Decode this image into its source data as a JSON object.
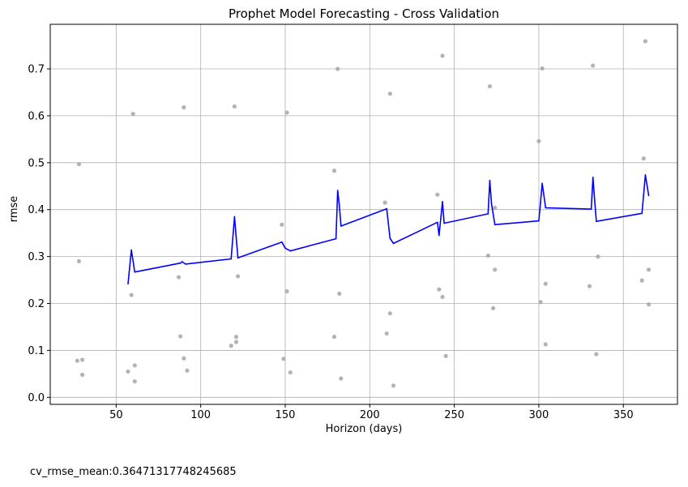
{
  "chart_data": {
    "type": "line",
    "title": "Prophet Model Forecasting - Cross Validation",
    "xlabel": "Horizon (days)",
    "ylabel": "rmse",
    "xlim": [
      11,
      382
    ],
    "ylim": [
      -0.015,
      0.795
    ],
    "x_ticks": [
      50,
      100,
      150,
      200,
      250,
      300,
      350
    ],
    "y_ticks": [
      0.0,
      0.1,
      0.2,
      0.3,
      0.4,
      0.5,
      0.6,
      0.7
    ],
    "grid": true,
    "series": [
      {
        "style": "scatter",
        "color": "#a6a6a6",
        "x": [
          27,
          28,
          28,
          30,
          30,
          57,
          59,
          60,
          61,
          61,
          87,
          88,
          90,
          90,
          92,
          118,
          120,
          121,
          121,
          122,
          148,
          149,
          151,
          151,
          153,
          179,
          179,
          181,
          182,
          183,
          209,
          210,
          212,
          212,
          214,
          240,
          241,
          243,
          243,
          245,
          270,
          271,
          273,
          274,
          274,
          300,
          301,
          302,
          304,
          304,
          330,
          332,
          334,
          335,
          361,
          362,
          363,
          365,
          365
        ],
        "y": [
          0.078,
          0.497,
          0.29,
          0.08,
          0.048,
          0.055,
          0.218,
          0.604,
          0.068,
          0.034,
          0.256,
          0.13,
          0.618,
          0.083,
          0.057,
          0.11,
          0.62,
          0.129,
          0.118,
          0.258,
          0.368,
          0.082,
          0.226,
          0.607,
          0.053,
          0.483,
          0.129,
          0.7,
          0.221,
          0.04,
          0.415,
          0.136,
          0.647,
          0.179,
          0.025,
          0.432,
          0.23,
          0.728,
          0.214,
          0.088,
          0.302,
          0.663,
          0.19,
          0.272,
          0.404,
          0.546,
          0.203,
          0.701,
          0.242,
          0.113,
          0.237,
          0.707,
          0.092,
          0.3,
          0.249,
          0.509,
          0.759,
          0.272,
          0.198
        ]
      },
      {
        "style": "line",
        "color": "#0000ff",
        "x": [
          57,
          59,
          61,
          88,
          89,
          91,
          118,
          120,
          121,
          122,
          148,
          150,
          153,
          180,
          181,
          182,
          183,
          210,
          212,
          214,
          240,
          241,
          243,
          244,
          270,
          271,
          272,
          274,
          300,
          301,
          302,
          304,
          331,
          332,
          333,
          334,
          361,
          363,
          365
        ],
        "y": [
          0.242,
          0.314,
          0.267,
          0.286,
          0.289,
          0.284,
          0.295,
          0.385,
          0.34,
          0.297,
          0.331,
          0.318,
          0.312,
          0.338,
          0.441,
          0.41,
          0.365,
          0.402,
          0.339,
          0.328,
          0.373,
          0.345,
          0.417,
          0.371,
          0.391,
          0.462,
          0.413,
          0.368,
          0.376,
          0.415,
          0.456,
          0.404,
          0.401,
          0.469,
          0.42,
          0.375,
          0.392,
          0.474,
          0.43
        ]
      }
    ]
  },
  "footer": {
    "text": "cv_rmse_mean:0.36471317748245685"
  }
}
